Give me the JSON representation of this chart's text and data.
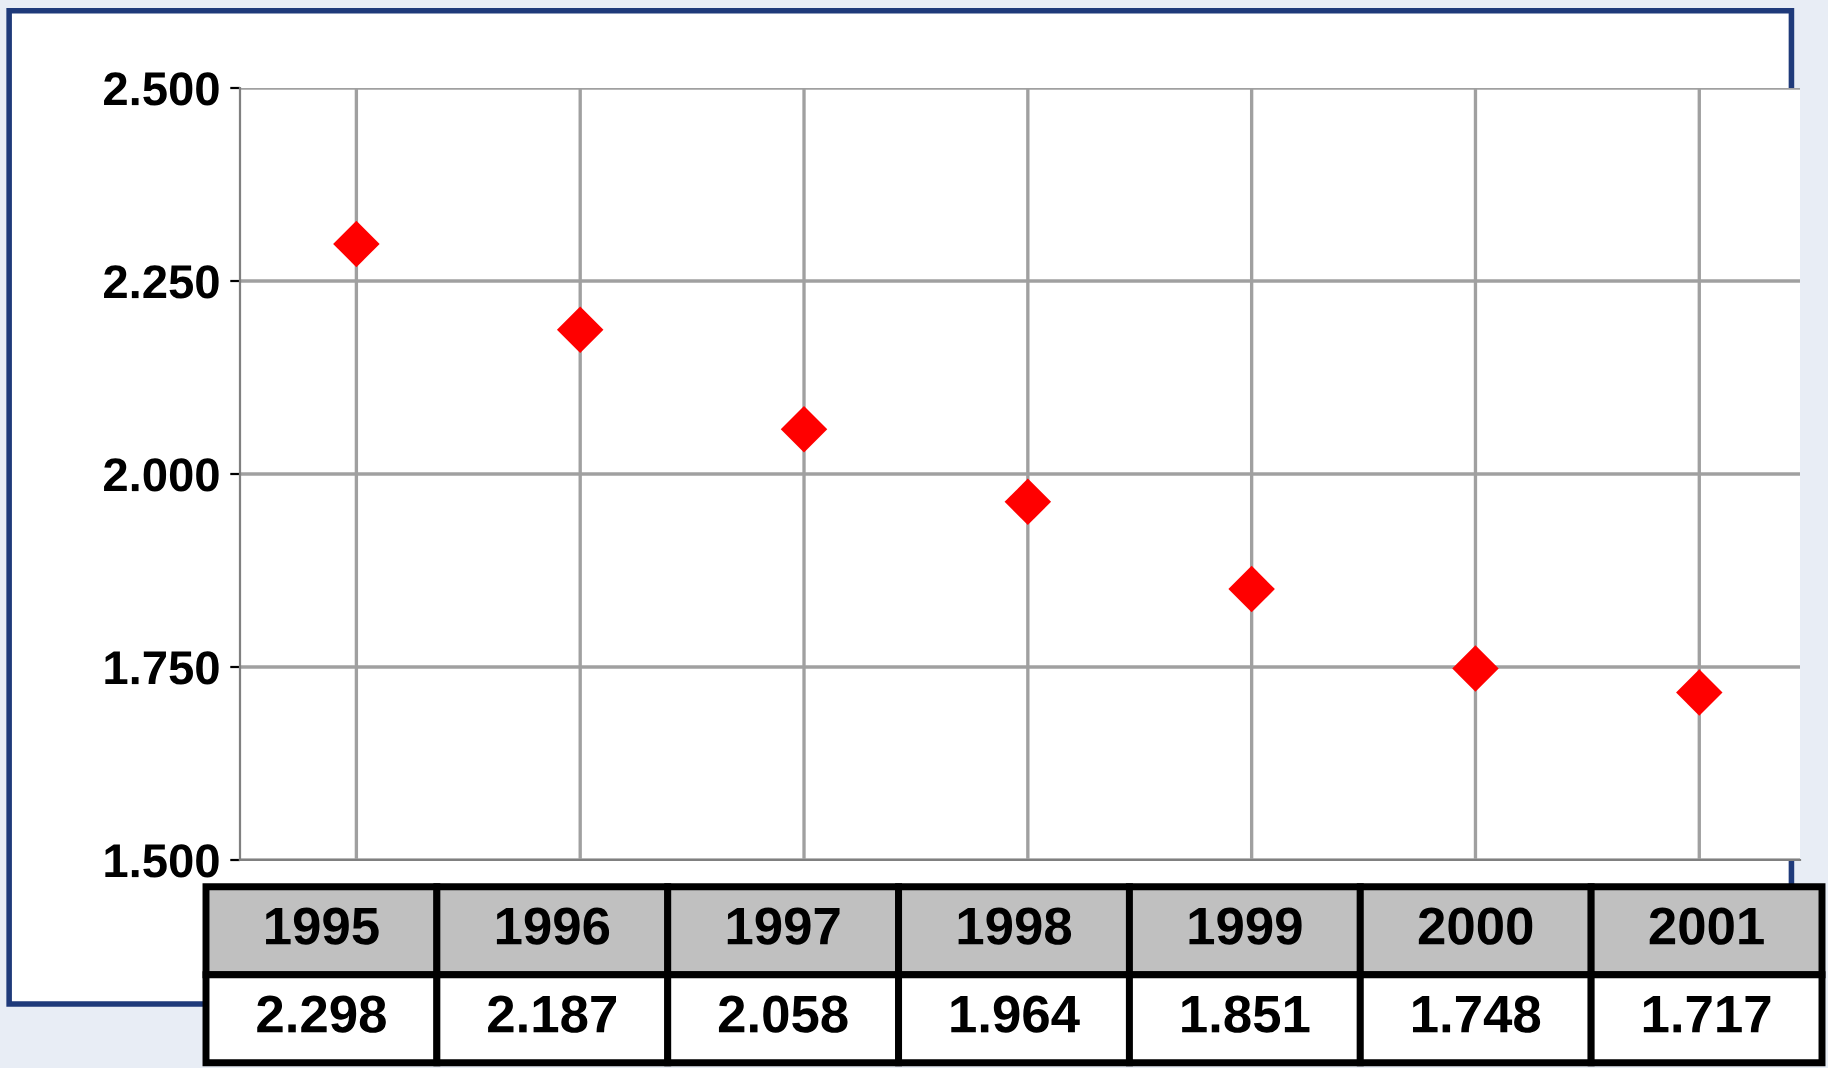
{
  "chart_data": {
    "type": "scatter",
    "categories": [
      "1995",
      "1996",
      "1997",
      "1998",
      "1999",
      "2000",
      "2001"
    ],
    "series": [
      {
        "color": "#ff0000",
        "values": [
          2.298,
          2.187,
          2.058,
          1.964,
          1.851,
          1.748,
          1.717
        ]
      }
    ],
    "marker": "diamond",
    "ylim": [
      1.5,
      2.5
    ],
    "yticks": [
      {
        "value": 1.5,
        "label": "1.500"
      },
      {
        "value": 1.75,
        "label": "1.750"
      },
      {
        "value": 2.0,
        "label": "2.000"
      },
      {
        "value": 2.25,
        "label": "2.250"
      },
      {
        "value": 2.5,
        "label": "2.500"
      }
    ],
    "grid": true,
    "data_labels": true,
    "legend": false
  }
}
